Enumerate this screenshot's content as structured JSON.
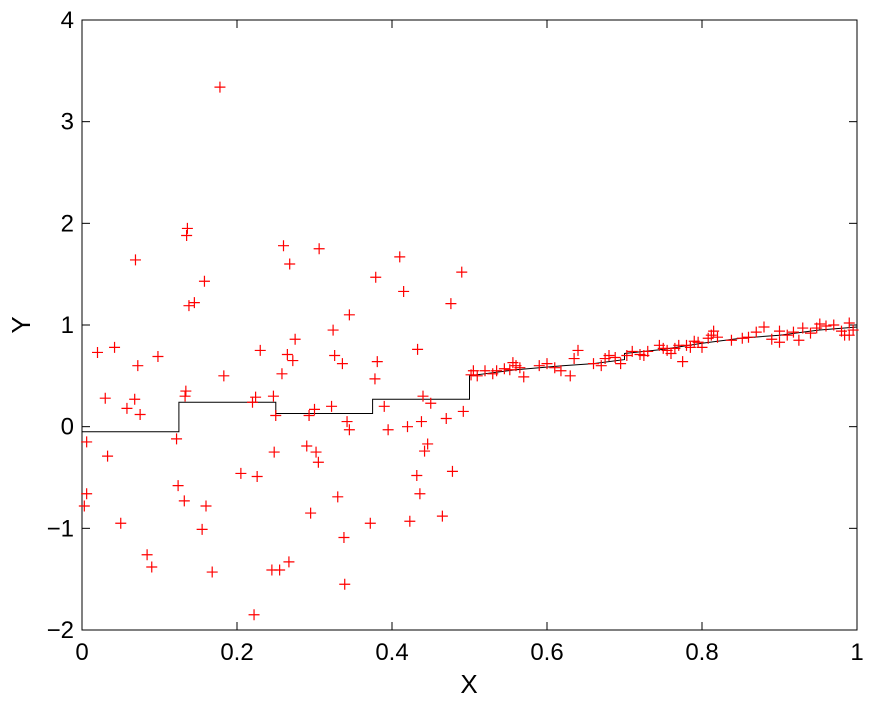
{
  "chart_data": {
    "type": "scatter",
    "xlabel": "X",
    "ylabel": "Y",
    "xlim": [
      0,
      1
    ],
    "ylim": [
      -2,
      4
    ],
    "xticks": [
      0,
      0.2,
      0.4,
      0.6,
      0.8,
      1
    ],
    "xtick_labels": [
      "0",
      "0.2",
      "0.4",
      "0.6",
      "0.8",
      "1"
    ],
    "yticks": [
      -2,
      -1,
      0,
      1,
      2,
      3,
      4
    ],
    "ytick_labels": [
      "−2",
      "−1",
      "0",
      "1",
      "2",
      "3",
      "4"
    ],
    "grid": false,
    "legend": "none",
    "series": [
      {
        "kind": "scatter",
        "marker": "+",
        "color": "#ff0000",
        "points": [
          [
            0.003,
            -0.78
          ],
          [
            0.006,
            -0.66
          ],
          [
            0.006,
            -0.15
          ],
          [
            0.02,
            0.73
          ],
          [
            0.03,
            0.28
          ],
          [
            0.033,
            -0.29
          ],
          [
            0.042,
            0.78
          ],
          [
            0.05,
            -0.95
          ],
          [
            0.058,
            0.18
          ],
          [
            0.068,
            0.27
          ],
          [
            0.069,
            1.64
          ],
          [
            0.072,
            0.6
          ],
          [
            0.075,
            0.12
          ],
          [
            0.084,
            -1.26
          ],
          [
            0.09,
            -1.38
          ],
          [
            0.098,
            0.69
          ],
          [
            0.122,
            -0.12
          ],
          [
            0.124,
            -0.58
          ],
          [
            0.132,
            -0.73
          ],
          [
            0.133,
            0.3
          ],
          [
            0.134,
            0.35
          ],
          [
            0.135,
            1.88
          ],
          [
            0.136,
            1.95
          ],
          [
            0.138,
            1.19
          ],
          [
            0.145,
            1.22
          ],
          [
            0.155,
            -1.01
          ],
          [
            0.158,
            1.43
          ],
          [
            0.16,
            -0.78
          ],
          [
            0.168,
            -1.43
          ],
          [
            0.178,
            3.34
          ],
          [
            0.183,
            0.5
          ],
          [
            0.205,
            -0.46
          ],
          [
            0.22,
            0.24
          ],
          [
            0.222,
            -1.85
          ],
          [
            0.224,
            0.29
          ],
          [
            0.226,
            -0.49
          ],
          [
            0.23,
            0.75
          ],
          [
            0.245,
            -1.41
          ],
          [
            0.248,
            -0.25
          ],
          [
            0.247,
            0.3
          ],
          [
            0.25,
            0.11
          ],
          [
            0.255,
            -1.41
          ],
          [
            0.258,
            0.52
          ],
          [
            0.26,
            1.78
          ],
          [
            0.265,
            0.71
          ],
          [
            0.268,
            1.6
          ],
          [
            0.267,
            -1.33
          ],
          [
            0.272,
            0.65
          ],
          [
            0.275,
            0.86
          ],
          [
            0.29,
            -0.19
          ],
          [
            0.293,
            0.11
          ],
          [
            0.295,
            -0.85
          ],
          [
            0.3,
            0.17
          ],
          [
            0.302,
            -0.25
          ],
          [
            0.305,
            -0.35
          ],
          [
            0.306,
            1.75
          ],
          [
            0.322,
            0.2
          ],
          [
            0.324,
            0.95
          ],
          [
            0.326,
            0.7
          ],
          [
            0.33,
            -0.69
          ],
          [
            0.336,
            0.62
          ],
          [
            0.338,
            -1.09
          ],
          [
            0.339,
            -1.55
          ],
          [
            0.342,
            0.05
          ],
          [
            0.345,
            -0.03
          ],
          [
            0.345,
            1.1
          ],
          [
            0.372,
            -0.95
          ],
          [
            0.378,
            0.47
          ],
          [
            0.379,
            1.47
          ],
          [
            0.381,
            0.64
          ],
          [
            0.39,
            0.2
          ],
          [
            0.395,
            -0.03
          ],
          [
            0.41,
            1.67
          ],
          [
            0.415,
            1.33
          ],
          [
            0.42,
            0.0
          ],
          [
            0.423,
            -0.93
          ],
          [
            0.432,
            -0.48
          ],
          [
            0.433,
            0.76
          ],
          [
            0.436,
            -0.66
          ],
          [
            0.438,
            0.05
          ],
          [
            0.44,
            0.3
          ],
          [
            0.442,
            -0.24
          ],
          [
            0.446,
            -0.17
          ],
          [
            0.45,
            0.23
          ],
          [
            0.465,
            -0.88
          ],
          [
            0.47,
            0.08
          ],
          [
            0.476,
            1.21
          ],
          [
            0.478,
            -0.44
          ],
          [
            0.49,
            1.52
          ],
          [
            0.492,
            0.15
          ],
          [
            0.502,
            0.51
          ],
          [
            0.505,
            0.55
          ],
          [
            0.51,
            0.5
          ],
          [
            0.52,
            0.55
          ],
          [
            0.53,
            0.52
          ],
          [
            0.535,
            0.55
          ],
          [
            0.545,
            0.57
          ],
          [
            0.552,
            0.56
          ],
          [
            0.556,
            0.63
          ],
          [
            0.56,
            0.6
          ],
          [
            0.565,
            0.58
          ],
          [
            0.57,
            0.49
          ],
          [
            0.59,
            0.6
          ],
          [
            0.6,
            0.62
          ],
          [
            0.61,
            0.58
          ],
          [
            0.618,
            0.55
          ],
          [
            0.63,
            0.5
          ],
          [
            0.635,
            0.67
          ],
          [
            0.64,
            0.75
          ],
          [
            0.66,
            0.62
          ],
          [
            0.67,
            0.6
          ],
          [
            0.675,
            0.67
          ],
          [
            0.68,
            0.7
          ],
          [
            0.688,
            0.68
          ],
          [
            0.695,
            0.62
          ],
          [
            0.703,
            0.7
          ],
          [
            0.71,
            0.74
          ],
          [
            0.72,
            0.71
          ],
          [
            0.725,
            0.7
          ],
          [
            0.73,
            0.74
          ],
          [
            0.745,
            0.8
          ],
          [
            0.75,
            0.77
          ],
          [
            0.755,
            0.75
          ],
          [
            0.76,
            0.72
          ],
          [
            0.765,
            0.77
          ],
          [
            0.77,
            0.8
          ],
          [
            0.775,
            0.64
          ],
          [
            0.78,
            0.8
          ],
          [
            0.785,
            0.78
          ],
          [
            0.79,
            0.84
          ],
          [
            0.795,
            0.83
          ],
          [
            0.8,
            0.78
          ],
          [
            0.808,
            0.87
          ],
          [
            0.812,
            0.9
          ],
          [
            0.815,
            0.94
          ],
          [
            0.82,
            0.88
          ],
          [
            0.838,
            0.85
          ],
          [
            0.852,
            0.87
          ],
          [
            0.86,
            0.88
          ],
          [
            0.87,
            0.93
          ],
          [
            0.88,
            0.98
          ],
          [
            0.89,
            0.86
          ],
          [
            0.9,
            0.83
          ],
          [
            0.9,
            0.94
          ],
          [
            0.91,
            0.9
          ],
          [
            0.918,
            0.93
          ],
          [
            0.925,
            0.85
          ],
          [
            0.93,
            0.97
          ],
          [
            0.94,
            0.92
          ],
          [
            0.948,
            0.97
          ],
          [
            0.952,
            1.01
          ],
          [
            0.96,
            0.99
          ],
          [
            0.97,
            1.0
          ],
          [
            0.98,
            0.94
          ],
          [
            0.984,
            0.9
          ],
          [
            0.99,
            1.02
          ],
          [
            0.995,
            0.95
          ],
          [
            0.99,
            0.9
          ]
        ]
      },
      {
        "kind": "step",
        "color": "#000000",
        "x": [
          0,
          0.125,
          0.125,
          0.25,
          0.25,
          0.375,
          0.375,
          0.5,
          0.5,
          0.5,
          0.56,
          0.62,
          0.66,
          0.7,
          0.7,
          0.75,
          0.8,
          0.85,
          0.9,
          0.95,
          1
        ],
        "y": [
          -0.05,
          -0.05,
          0.24,
          0.24,
          0.13,
          0.13,
          0.27,
          0.27,
          0.5,
          0.5,
          0.56,
          0.6,
          0.62,
          0.66,
          0.72,
          0.76,
          0.82,
          0.87,
          0.9,
          0.95,
          0.98
        ]
      }
    ]
  }
}
